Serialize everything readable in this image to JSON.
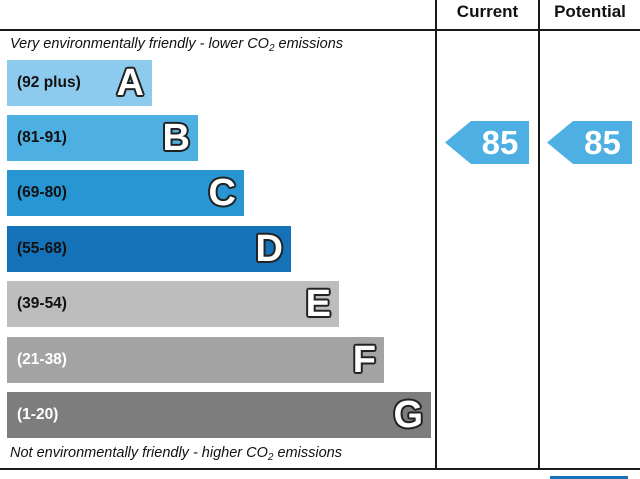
{
  "header": {
    "current_label": "Current",
    "potential_label": "Potential"
  },
  "notes": {
    "top_text": "Very environmentally friendly - lower C",
    "top_o": "O",
    "top_sub": "2",
    "top_suffix": " emissions",
    "bottom_text": "Not environmentally friendly - higher C",
    "bottom_o": "O",
    "bottom_sub": "2",
    "bottom_suffix": " emissions"
  },
  "bands": [
    {
      "range": "(92 plus)",
      "letter": "A",
      "color": "#8ccbed",
      "text_color": "#111111"
    },
    {
      "range": "(81-91)",
      "letter": "B",
      "color": "#4eb0e2",
      "text_color": "#111111"
    },
    {
      "range": "(69-80)",
      "letter": "C",
      "color": "#2896d3",
      "text_color": "#111111"
    },
    {
      "range": "(55-68)",
      "letter": "D",
      "color": "#1672b8",
      "text_color": "#111111"
    },
    {
      "range": "(39-54)",
      "letter": "E",
      "color": "#bdbdbd",
      "text_color": "#111111"
    },
    {
      "range": "(21-38)",
      "letter": "F",
      "color": "#a3a3a3",
      "text_color": "#ffffff"
    },
    {
      "range": "(1-20)",
      "letter": "G",
      "color": "#7d7d7d",
      "text_color": "#ffffff"
    }
  ],
  "ratings": {
    "current": "85",
    "potential": "85",
    "arrow_color": "#4eb0e2"
  }
}
